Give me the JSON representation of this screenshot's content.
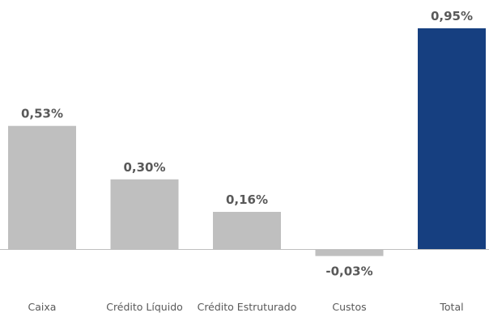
{
  "chart_data": {
    "type": "bar",
    "categories": [
      "Caixa",
      "Crédito Líquido",
      "Crédito Estruturado",
      "Custos",
      "Total"
    ],
    "values": [
      0.53,
      0.3,
      0.16,
      -0.03,
      0.95
    ],
    "data_labels": [
      "0,53%",
      "0,30%",
      "0,16%",
      "-0,03%",
      "0,95%"
    ],
    "ylim": [
      -0.03,
      0.95
    ],
    "grid": false,
    "legend": "none",
    "colors": {
      "bar": "#bfbfbf",
      "total_bar": "#163f80",
      "axis": "#bfbfbf",
      "label": "#595959"
    }
  }
}
